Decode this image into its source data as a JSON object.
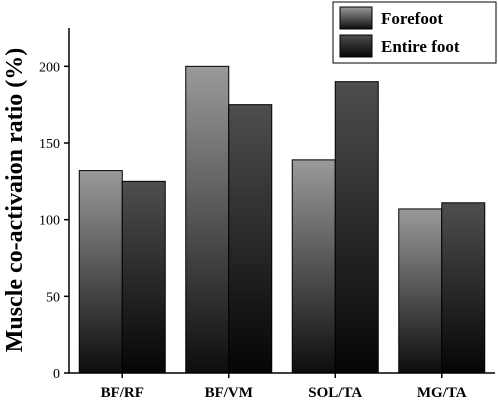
{
  "chart_data": {
    "type": "bar",
    "categories": [
      "BF/RF",
      "BF/VM",
      "SOL/TA",
      "MG/TA"
    ],
    "series": [
      {
        "name": "Forefoot",
        "values": [
          132,
          200,
          139,
          107
        ],
        "color_top": "#9a9a9a",
        "color_bottom": "#0d0d0d"
      },
      {
        "name": "Entire foot",
        "values": [
          125,
          175,
          190,
          111
        ],
        "color_top": "#4e4e4e",
        "color_bottom": "#050505"
      }
    ],
    "xlabel": "",
    "ylabel": "Muscle co-activaion ratio (%)",
    "ylim": [
      0,
      225
    ],
    "yticks": [
      "0",
      "50",
      "100",
      "150",
      "200"
    ],
    "grid": false,
    "legend_position": "top-right"
  }
}
